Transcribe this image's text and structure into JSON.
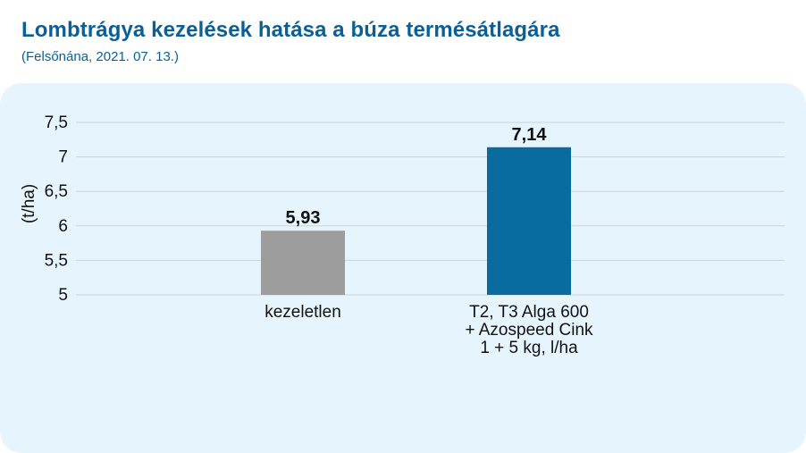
{
  "header": {
    "title": "Lombtrágya kezelések hatása a búza termésátlagára",
    "subtitle": "(Felsőnána, 2021. 07. 13.)"
  },
  "colors": {
    "title": "#0a5f96",
    "panel_background": "#e6f5fd",
    "gridline": "#c9d3da",
    "bar_untreated": "#9d9d9d",
    "bar_treated": "#0a6b9f"
  },
  "chart_data": {
    "type": "bar",
    "ylabel": "(t/ha)",
    "ylim": [
      5,
      7.5
    ],
    "yticks": [
      {
        "value": 5,
        "label": "5"
      },
      {
        "value": 5.5,
        "label": "5,5"
      },
      {
        "value": 6,
        "label": "6"
      },
      {
        "value": 6.5,
        "label": "6,5"
      },
      {
        "value": 7,
        "label": "7"
      },
      {
        "value": 7.5,
        "label": "7,5"
      }
    ],
    "grid": true,
    "categories": [
      [
        "kezeletlen"
      ],
      [
        "T2, T3 Alga 600",
        "+ Azospeed Cink",
        "1 + 5 kg, l/ha"
      ]
    ],
    "values": [
      5.93,
      7.14
    ],
    "value_labels": [
      "5,93",
      "7,14"
    ],
    "bar_colors": [
      "#9d9d9d",
      "#0a6b9f"
    ]
  }
}
